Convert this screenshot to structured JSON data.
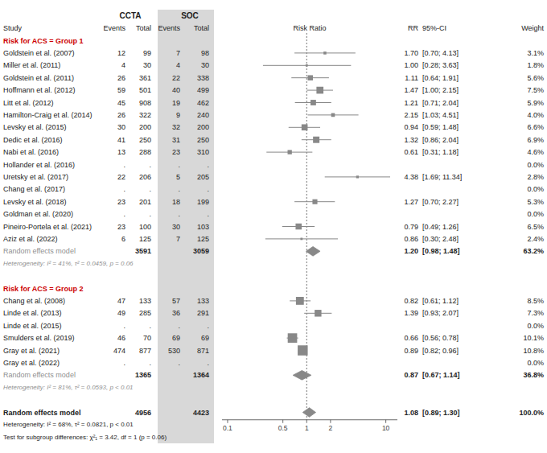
{
  "chart_data": {
    "type": "forest",
    "log": "x",
    "xlim": [
      0.085,
      14.0
    ],
    "xticks": [
      0.1,
      0.5,
      1,
      2,
      10
    ],
    "reference": 1,
    "color": "#888888",
    "column_groups": [
      {
        "label": "CCTA"
      },
      {
        "label": "SOC",
        "color": "#d8d8d8"
      }
    ],
    "columns": [
      "Study",
      "Events",
      "Total",
      "Events",
      "Total",
      "Risk Ratio",
      "RR",
      "95%-CI",
      "Weight"
    ],
    "groups": [
      {
        "name": "Risk for ACS = Group 1",
        "color": "#cc0000",
        "studies": [
          {
            "name": "Goldstein et al. (2007)",
            "ccta_events": "12",
            "ccta_total": "99",
            "soc_events": "7",
            "soc_total": "98",
            "value": 1.7,
            "value_label": "1.70",
            "ci": [
              0.7,
              4.13
            ],
            "ci_label": "[0.70; 4.13]",
            "weight": 3.1,
            "weight_label": "3.1%"
          },
          {
            "name": "Miller et al. (2011)",
            "ccta_events": "4",
            "ccta_total": "30",
            "soc_events": "4",
            "soc_total": "30",
            "value": 1.0,
            "value_label": "1.00",
            "ci": [
              0.28,
              3.63
            ],
            "ci_label": "[0.28; 3.63]",
            "weight": 1.8,
            "weight_label": "1.8%"
          },
          {
            "name": "Goldstein et al. (2011)",
            "ccta_events": "26",
            "ccta_total": "361",
            "soc_events": "22",
            "soc_total": "338",
            "value": 1.11,
            "value_label": "1.11",
            "ci": [
              0.64,
              1.91
            ],
            "ci_label": "[0.64; 1.91]",
            "weight": 5.6,
            "weight_label": "5.6%"
          },
          {
            "name": "Hoffmann et al. (2012)",
            "ccta_events": "59",
            "ccta_total": "501",
            "soc_events": "40",
            "soc_total": "499",
            "value": 1.47,
            "value_label": "1.47",
            "ci": [
              1.0,
              2.15
            ],
            "ci_label": "[1.00; 2.15]",
            "weight": 7.5,
            "weight_label": "7.5%"
          },
          {
            "name": "Litt et al. (2012)",
            "ccta_events": "45",
            "ccta_total": "908",
            "soc_events": "19",
            "soc_total": "462",
            "value": 1.21,
            "value_label": "1.21",
            "ci": [
              0.71,
              2.04
            ],
            "ci_label": "[0.71; 2.04]",
            "weight": 5.9,
            "weight_label": "5.9%"
          },
          {
            "name": "Hamilton-Craig et al. (2014)",
            "ccta_events": "26",
            "ccta_total": "322",
            "soc_events": "9",
            "soc_total": "240",
            "value": 2.15,
            "value_label": "2.15",
            "ci": [
              1.03,
              4.51
            ],
            "ci_label": "[1.03; 4.51]",
            "weight": 4.0,
            "weight_label": "4.0%"
          },
          {
            "name": "Levsky et al. (2015)",
            "ccta_events": "30",
            "ccta_total": "200",
            "soc_events": "32",
            "soc_total": "200",
            "value": 0.94,
            "value_label": "0.94",
            "ci": [
              0.59,
              1.48
            ],
            "ci_label": "[0.59; 1.48]",
            "weight": 6.6,
            "weight_label": "6.6%"
          },
          {
            "name": "Dedic et al. (2016)",
            "ccta_events": "41",
            "ccta_total": "250",
            "soc_events": "31",
            "soc_total": "250",
            "value": 1.32,
            "value_label": "1.32",
            "ci": [
              0.86,
              2.04
            ],
            "ci_label": "[0.86; 2.04]",
            "weight": 6.9,
            "weight_label": "6.9%"
          },
          {
            "name": "Nabi et al. (2016)",
            "ccta_events": "13",
            "ccta_total": "288",
            "soc_events": "23",
            "soc_total": "310",
            "value": 0.61,
            "value_label": "0.61",
            "ci": [
              0.31,
              1.18
            ],
            "ci_label": "[0.31; 1.18]",
            "weight": 4.6,
            "weight_label": "4.6%"
          },
          {
            "name": "Hollander et al. (2016)",
            "ccta_events": ".",
            "ccta_total": ".",
            "soc_events": ".",
            "soc_total": ".",
            "weight_label": "0.0%"
          },
          {
            "name": "Uretsky et al. (2017)",
            "ccta_events": "22",
            "ccta_total": "206",
            "soc_events": "5",
            "soc_total": "205",
            "value": 4.38,
            "value_label": "4.38",
            "ci": [
              1.69,
              11.34
            ],
            "ci_label": "[1.69; 11.34]",
            "weight": 2.8,
            "weight_label": "2.8%"
          },
          {
            "name": "Chang et al. (2017)",
            "ccta_events": ".",
            "ccta_total": ".",
            "soc_events": ".",
            "soc_total": ".",
            "weight_label": "0.0%"
          },
          {
            "name": "Levsky et al. (2018)",
            "ccta_events": "23",
            "ccta_total": "201",
            "soc_events": "18",
            "soc_total": "199",
            "value": 1.27,
            "value_label": "1.27",
            "ci": [
              0.7,
              2.27
            ],
            "ci_label": "[0.70; 2.27]",
            "weight": 5.3,
            "weight_label": "5.3%"
          },
          {
            "name": "Goldman et al. (2020)",
            "ccta_events": ".",
            "ccta_total": ".",
            "soc_events": ".",
            "soc_total": ".",
            "weight_label": "0.0%"
          },
          {
            "name": "Pineiro-Portela et al. (2021)",
            "ccta_events": "23",
            "ccta_total": "100",
            "soc_events": "30",
            "soc_total": "103",
            "value": 0.79,
            "value_label": "0.79",
            "ci": [
              0.49,
              1.26
            ],
            "ci_label": "[0.49; 1.26]",
            "weight": 6.5,
            "weight_label": "6.5%"
          },
          {
            "name": "Aziz et al. (2022)",
            "ccta_events": "6",
            "ccta_total": "125",
            "soc_events": "7",
            "soc_total": "125",
            "value": 0.86,
            "value_label": "0.86",
            "ci": [
              0.3,
              2.48
            ],
            "ci_label": "[0.30; 2.48]",
            "weight": 2.4,
            "weight_label": "2.4%"
          }
        ],
        "summary": {
          "label": "Random effects model",
          "color": "#909090",
          "ccta_total": "3591",
          "soc_total": "3059",
          "value": 1.2,
          "value_label": "1.20",
          "ci": [
            0.98,
            1.48
          ],
          "ci_label": "[0.98; 1.48]",
          "weight_label": "63.2%"
        },
        "heterogeneity": "Heterogeneity: I² = 41%, τ² = 0.0459, p = 0.06"
      },
      {
        "name": "Risk for ACS = Group 2",
        "color": "#cc0000",
        "studies": [
          {
            "name": "Chang et al. (2008)",
            "ccta_events": "47",
            "ccta_total": "133",
            "soc_events": "57",
            "soc_total": "133",
            "value": 0.82,
            "value_label": "0.82",
            "ci": [
              0.61,
              1.12
            ],
            "ci_label": "[0.61; 1.12]",
            "weight": 8.5,
            "weight_label": "8.5%"
          },
          {
            "name": "Linde et al. (2013)",
            "ccta_events": "49",
            "ccta_total": "285",
            "soc_events": "36",
            "soc_total": "291",
            "value": 1.39,
            "value_label": "1.39",
            "ci": [
              0.93,
              2.07
            ],
            "ci_label": "[0.93; 2.07]",
            "weight": 7.3,
            "weight_label": "7.3%"
          },
          {
            "name": "Linde et al. (2015)",
            "ccta_events": ".",
            "ccta_total": ".",
            "soc_events": ".",
            "soc_total": ".",
            "weight_label": "0.0%"
          },
          {
            "name": "Smulders et al. (2019)",
            "ccta_events": "46",
            "ccta_total": "70",
            "soc_events": "69",
            "soc_total": "69",
            "value": 0.66,
            "value_label": "0.66",
            "ci": [
              0.56,
              0.78
            ],
            "ci_label": "[0.56; 0.78]",
            "weight": 10.1,
            "weight_label": "10.1%"
          },
          {
            "name": "Gray et al. (2021)",
            "ccta_events": "474",
            "ccta_total": "877",
            "soc_events": "530",
            "soc_total": "871",
            "value": 0.89,
            "value_label": "0.89",
            "ci": [
              0.82,
              0.96
            ],
            "ci_label": "[0.82; 0.96]",
            "weight": 10.8,
            "weight_label": "10.8%"
          },
          {
            "name": "Gray et al. (2022)",
            "ccta_events": ".",
            "ccta_total": ".",
            "soc_events": ".",
            "soc_total": ".",
            "weight_label": "0.0%"
          }
        ],
        "summary": {
          "label": "Random effects model",
          "color": "#909090",
          "ccta_total": "1365",
          "soc_total": "1364",
          "value": 0.87,
          "value_label": "0.87",
          "ci": [
            0.67,
            1.14
          ],
          "ci_label": "[0.67; 1.14]",
          "weight_label": "36.8%"
        },
        "heterogeneity": "Heterogeneity: I² = 81%, τ² = 0.0593, p < 0.01"
      }
    ],
    "overall": {
      "label": "Random effects model",
      "ccta_total": "4956",
      "soc_total": "4423",
      "value": 1.08,
      "value_label": "1.08",
      "ci": [
        0.89,
        1.3
      ],
      "ci_label": "[0.89; 1.30]",
      "weight_label": "100.0%",
      "heterogeneity": "Heterogeneity: I² = 68%, τ² = 0.0821, p < 0.01",
      "subgroup_test": "Test for subgroup differences: χ²₁ = 3.42, df = 1 (p = 0.06)"
    }
  }
}
